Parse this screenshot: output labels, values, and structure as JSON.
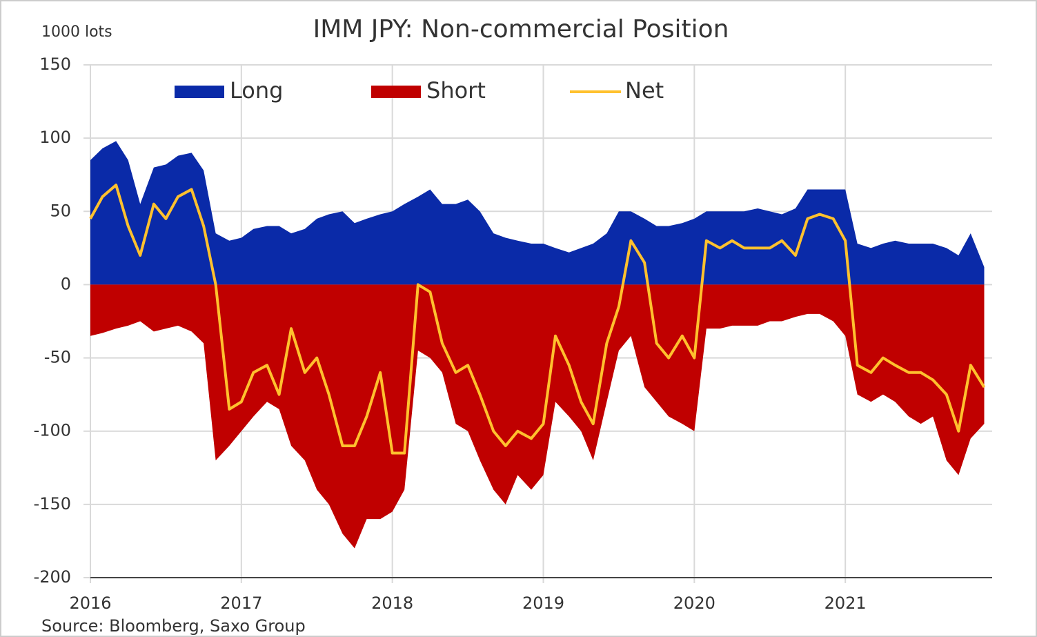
{
  "chart_data": {
    "type": "area_line",
    "title": "IMM JPY: Non-commercial Position",
    "y_label": "1000 lots",
    "source": "Source: Bloomberg, Saxo Group",
    "x": [
      2016,
      2016.08,
      2016.17,
      2016.25,
      2016.33,
      2016.42,
      2016.5,
      2016.58,
      2016.67,
      2016.75,
      2016.83,
      2016.92,
      2017,
      2017.08,
      2017.17,
      2017.25,
      2017.33,
      2017.42,
      2017.5,
      2017.58,
      2017.67,
      2017.75,
      2017.83,
      2017.92,
      2018,
      2018.08,
      2018.17,
      2018.25,
      2018.33,
      2018.42,
      2018.5,
      2018.58,
      2018.67,
      2018.75,
      2018.83,
      2018.92,
      2019,
      2019.08,
      2019.17,
      2019.25,
      2019.33,
      2019.42,
      2019.5,
      2019.58,
      2019.67,
      2019.75,
      2019.83,
      2019.92,
      2020,
      2020.08,
      2020.17,
      2020.25,
      2020.33,
      2020.42,
      2020.5,
      2020.58,
      2020.67,
      2020.75,
      2020.83,
      2020.92,
      2021,
      2021.08,
      2021.17,
      2021.25,
      2021.33,
      2021.42,
      2021.5,
      2021.58,
      2021.67,
      2021.75,
      2021.83,
      2021.92
    ],
    "series": [
      {
        "name": "Long",
        "color": "#0a2aa8",
        "kind": "area",
        "values": [
          85,
          93,
          98,
          85,
          55,
          80,
          82,
          88,
          90,
          78,
          35,
          30,
          32,
          38,
          40,
          40,
          35,
          38,
          45,
          48,
          50,
          42,
          45,
          48,
          50,
          55,
          60,
          65,
          55,
          55,
          58,
          50,
          35,
          32,
          30,
          28,
          28,
          25,
          22,
          25,
          28,
          35,
          50,
          50,
          45,
          40,
          40,
          42,
          45,
          50,
          50,
          50,
          50,
          52,
          50,
          48,
          52,
          65,
          65,
          65,
          65,
          28,
          25,
          28,
          30,
          28,
          28,
          28,
          25,
          20,
          35,
          12
        ]
      },
      {
        "name": "Short",
        "color": "#c00000",
        "kind": "area",
        "values": [
          -35,
          -33,
          -30,
          -28,
          -25,
          -32,
          -30,
          -28,
          -32,
          -40,
          -120,
          -110,
          -100,
          -90,
          -80,
          -85,
          -110,
          -120,
          -140,
          -150,
          -170,
          -180,
          -160,
          -160,
          -155,
          -140,
          -45,
          -50,
          -60,
          -95,
          -100,
          -120,
          -140,
          -150,
          -130,
          -140,
          -130,
          -80,
          -90,
          -100,
          -120,
          -80,
          -45,
          -35,
          -70,
          -80,
          -90,
          -95,
          -100,
          -30,
          -30,
          -28,
          -28,
          -28,
          -25,
          -25,
          -22,
          -20,
          -20,
          -25,
          -35,
          -75,
          -80,
          -75,
          -80,
          -90,
          -95,
          -90,
          -120,
          -130,
          -105,
          -95
        ]
      },
      {
        "name": "Net",
        "color": "#ffc12e",
        "kind": "line",
        "values": [
          45,
          60,
          68,
          40,
          20,
          55,
          45,
          60,
          65,
          40,
          0,
          -85,
          -80,
          -60,
          -55,
          -75,
          -30,
          -60,
          -50,
          -75,
          -110,
          -110,
          -90,
          -60,
          -115,
          -115,
          0,
          -5,
          -40,
          -60,
          -55,
          -75,
          -100,
          -110,
          -100,
          -105,
          -95,
          -35,
          -55,
          -80,
          -95,
          -40,
          -15,
          30,
          15,
          -40,
          -50,
          -35,
          -50,
          30,
          25,
          30,
          25,
          25,
          25,
          30,
          20,
          45,
          48,
          45,
          30,
          -55,
          -60,
          -50,
          -55,
          -60,
          -60,
          -65,
          -75,
          -100,
          -55,
          -70
        ]
      }
    ],
    "xlim": [
      2016,
      2022
    ],
    "xticks": [
      2016,
      2017,
      2018,
      2019,
      2020,
      2021
    ],
    "ylim": [
      -200,
      150
    ],
    "yticks": [
      -200,
      -150,
      -100,
      -50,
      0,
      50,
      100,
      150
    ],
    "grid": true,
    "legend": "top"
  }
}
